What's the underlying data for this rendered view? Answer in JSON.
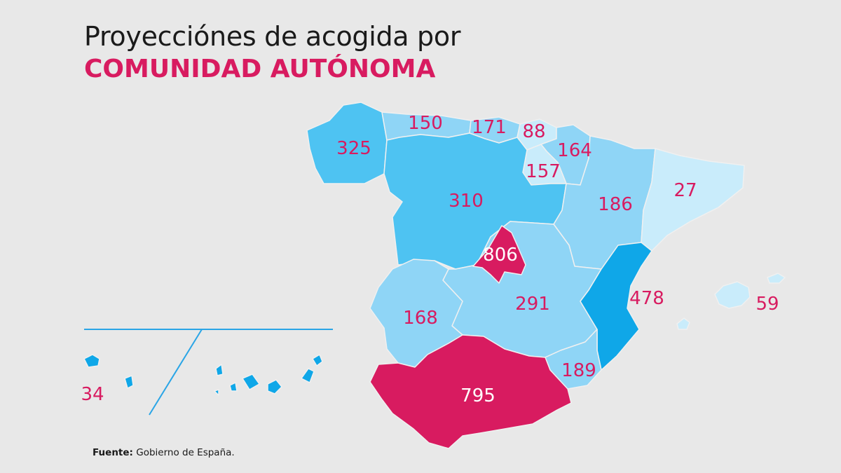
{
  "title": {
    "line1": "Proyecciónes de acogida por",
    "line2": "COMUNIDAD AUTÓNOMA"
  },
  "colors": {
    "background": "#e8e8e8",
    "highlight": "#d81b60",
    "blue_1": "#c9ecfb",
    "blue_2": "#8fd5f6",
    "blue_3": "#4ec3f2",
    "blue_4": "#0fa7e8",
    "label_dark": "#d81b60",
    "label_light": "#ffffff"
  },
  "regions": {
    "galicia": {
      "value": "325"
    },
    "asturias": {
      "value": "150"
    },
    "cantabria": {
      "value": "171"
    },
    "pais_vasco": {
      "value": "88"
    },
    "navarra": {
      "value": "164"
    },
    "la_rioja": {
      "value": "157"
    },
    "castilla_leon": {
      "value": "310"
    },
    "aragon": {
      "value": "186"
    },
    "cataluna": {
      "value": "27"
    },
    "madrid": {
      "value": "806"
    },
    "extremadura": {
      "value": "168"
    },
    "castilla_la_mancha": {
      "value": "291"
    },
    "valencia": {
      "value": "478"
    },
    "baleares": {
      "value": "59"
    },
    "murcia": {
      "value": "189"
    },
    "andalucia": {
      "value": "795"
    },
    "canarias": {
      "value": "34"
    }
  },
  "source": {
    "label": "Fuente:",
    "text": " Gobierno de España."
  }
}
